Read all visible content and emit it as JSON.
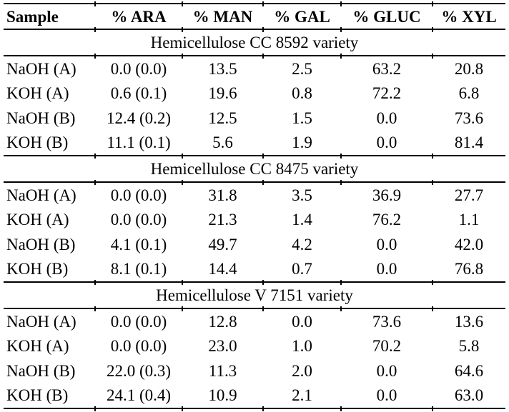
{
  "table": {
    "columns": [
      "Sample",
      "% ARA",
      "% MAN",
      "% GAL",
      "% GLUC",
      "% XYL"
    ],
    "sections": [
      {
        "title": "Hemicellulose CC 8592 variety",
        "rows": [
          [
            "NaOH (A)",
            "0.0 (0.0)",
            "13.5",
            "2.5",
            "63.2",
            "20.8"
          ],
          [
            "KOH (A)",
            "0.6 (0.1)",
            "19.6",
            "0.8",
            "72.2",
            "6.8"
          ],
          [
            "NaOH (B)",
            "12.4 (0.2)",
            "12.5",
            "1.5",
            "0.0",
            "73.6"
          ],
          [
            "KOH (B)",
            "11.1 (0.1)",
            "5.6",
            "1.9",
            "0.0",
            "81.4"
          ]
        ]
      },
      {
        "title": "Hemicellulose CC 8475 variety",
        "rows": [
          [
            "NaOH (A)",
            "0.0 (0.0)",
            "31.8",
            "3.5",
            "36.9",
            "27.7"
          ],
          [
            "KOH (A)",
            "0.0 (0.0)",
            "21.3",
            "1.4",
            "76.2",
            "1.1"
          ],
          [
            "NaOH (B)",
            "4.1 (0.1)",
            "49.7",
            "4.2",
            "0.0",
            "42.0"
          ],
          [
            "KOH (B)",
            "8.1 (0.1)",
            "14.4",
            "0.7",
            "0.0",
            "76.8"
          ]
        ]
      },
      {
        "title": "Hemicellulose V 7151 variety",
        "rows": [
          [
            "NaOH (A)",
            "0.0 (0.0)",
            "12.8",
            "0.0",
            "73.6",
            "13.6"
          ],
          [
            "KOH (A)",
            "0.0 (0.0)",
            "23.0",
            "1.0",
            "70.2",
            "5.8"
          ],
          [
            "NaOH (B)",
            "22.0 (0.3)",
            "11.3",
            "2.0",
            "0.0",
            "64.6"
          ],
          [
            "KOH (B)",
            "24.1 (0.4)",
            "10.9",
            "2.1",
            "0.0",
            "63.0"
          ]
        ]
      }
    ]
  }
}
